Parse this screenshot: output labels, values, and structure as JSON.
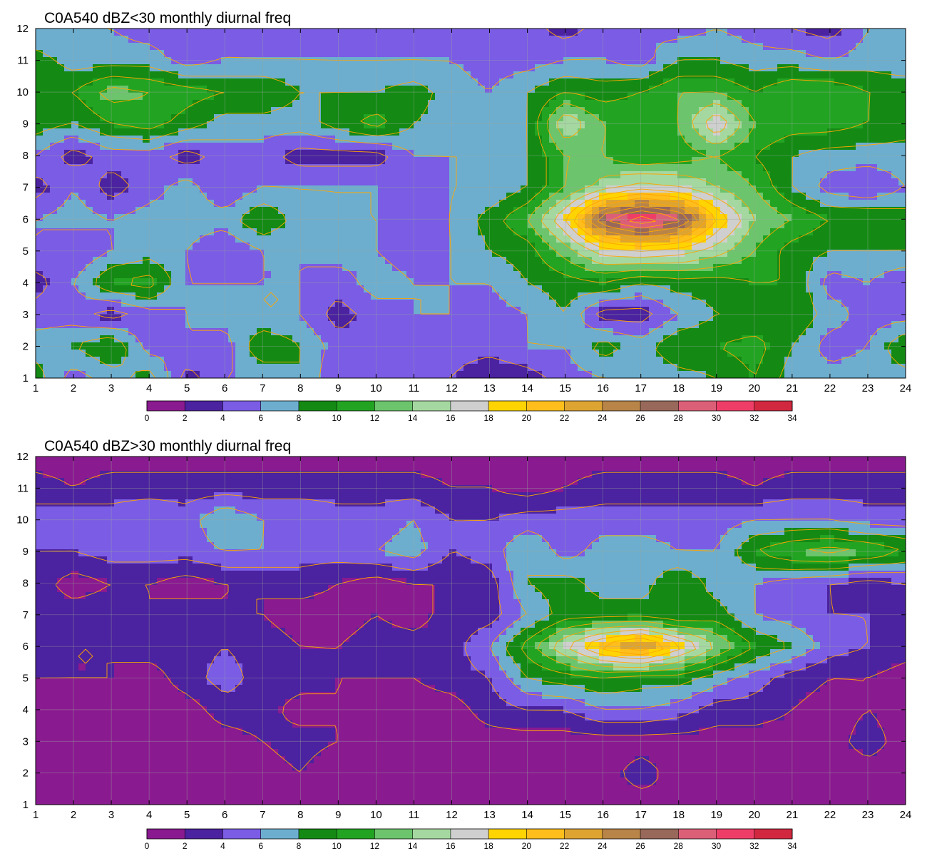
{
  "chart_data": [
    {
      "type": "heatmap",
      "title": "C0A540 dBZ<30 monthly diurnal freq",
      "x_ticks": [
        1,
        2,
        3,
        4,
        5,
        6,
        7,
        8,
        9,
        10,
        11,
        12,
        13,
        14,
        15,
        16,
        17,
        18,
        19,
        20,
        21,
        22,
        23,
        24
      ],
      "y_ticks": [
        1,
        2,
        3,
        4,
        5,
        6,
        7,
        8,
        9,
        10,
        11,
        12
      ],
      "xlim": [
        1,
        24
      ],
      "ylim": [
        1,
        12
      ],
      "grid": true,
      "legend": "colorbar-bottom",
      "colorbar_levels": [
        0,
        2,
        4,
        6,
        8,
        10,
        12,
        14,
        16,
        18,
        20,
        22,
        24,
        26,
        28,
        30,
        32,
        34
      ],
      "z": [
        [
          9,
          5,
          7,
          9,
          3,
          6,
          6,
          8,
          4,
          5,
          4,
          4,
          2,
          3,
          5,
          6,
          6,
          7,
          8,
          10,
          7,
          7,
          7,
          7
        ],
        [
          7,
          8,
          10,
          5,
          6,
          5,
          10,
          8,
          5,
          6,
          6,
          5,
          5,
          6,
          6,
          9,
          7,
          10,
          10,
          11,
          8,
          5,
          6,
          10
        ],
        [
          5,
          5,
          3,
          5,
          6,
          7,
          6,
          6,
          3,
          5,
          6,
          6,
          5,
          6,
          8,
          3,
          3,
          6,
          8,
          8,
          10,
          7,
          5,
          5
        ],
        [
          3,
          6,
          10,
          11,
          6,
          6,
          6,
          6,
          5,
          7,
          6,
          6,
          6,
          8,
          9,
          10,
          8,
          9,
          9,
          10,
          10,
          5,
          6,
          4
        ],
        [
          6,
          4,
          6,
          7,
          6,
          4,
          6,
          6,
          7,
          6,
          5,
          6,
          8,
          9,
          13,
          17,
          18,
          17,
          15,
          12,
          9,
          8,
          8,
          8
        ],
        [
          6,
          7,
          6,
          7,
          7,
          7,
          10,
          7,
          6,
          6,
          6,
          6,
          9,
          12,
          18,
          28,
          32,
          29,
          20,
          14,
          12,
          10,
          10,
          9
        ],
        [
          3,
          6,
          3,
          5,
          7,
          4,
          6,
          6,
          6,
          6,
          4,
          6,
          6,
          8,
          12,
          15,
          17,
          16,
          14,
          12,
          8,
          5,
          4,
          6
        ],
        [
          6,
          3,
          5,
          5,
          3,
          5,
          5,
          3,
          3,
          3,
          6,
          6,
          6,
          8,
          12,
          12,
          10,
          11,
          12,
          10,
          8,
          7,
          7,
          7
        ],
        [
          9,
          8,
          10,
          11,
          9,
          7,
          7,
          7,
          9,
          11,
          8,
          7,
          6,
          8,
          16,
          12,
          12,
          12,
          18,
          12,
          11,
          11,
          10,
          9
        ],
        [
          10,
          10,
          13,
          12,
          11,
          10,
          10,
          8,
          8,
          8,
          9,
          7,
          6,
          8,
          10,
          9,
          10,
          12,
          12,
          10,
          12,
          12,
          10,
          10
        ],
        [
          9,
          7,
          7,
          7,
          5,
          6,
          6,
          6,
          6,
          6,
          6,
          6,
          5,
          5,
          6,
          6,
          5,
          8,
          8,
          7,
          7,
          6,
          7,
          6
        ],
        [
          6,
          6,
          6,
          5,
          5,
          6,
          5,
          5,
          4,
          4,
          4,
          4,
          5,
          5,
          3,
          5,
          6,
          5,
          6,
          5,
          4,
          3,
          6,
          6
        ]
      ]
    },
    {
      "type": "heatmap",
      "title": "C0A540 dBZ>30 monthly diurnal freq",
      "x_ticks": [
        1,
        2,
        3,
        4,
        5,
        6,
        7,
        8,
        9,
        10,
        11,
        12,
        13,
        14,
        15,
        16,
        17,
        18,
        19,
        20,
        21,
        22,
        23,
        24
      ],
      "y_ticks": [
        1,
        2,
        3,
        4,
        5,
        6,
        7,
        8,
        9,
        10,
        11,
        12
      ],
      "xlim": [
        1,
        24
      ],
      "ylim": [
        1,
        12
      ],
      "grid": true,
      "legend": "colorbar-bottom",
      "colorbar_levels": [
        0,
        2,
        4,
        6,
        8,
        10,
        12,
        14,
        16,
        18,
        20,
        22,
        24,
        26,
        28,
        30,
        32,
        34
      ],
      "z": [
        [
          1,
          2,
          2,
          1,
          0,
          1,
          0,
          0,
          1,
          2,
          1,
          1,
          1,
          1,
          0,
          1,
          1,
          2,
          2,
          2,
          2,
          1,
          1,
          1
        ],
        [
          1,
          0,
          1,
          1,
          2,
          1,
          1,
          2,
          0,
          2,
          1,
          1,
          1,
          1,
          2,
          1,
          3,
          1,
          1,
          1,
          1,
          1,
          1,
          1
        ],
        [
          1,
          0,
          1,
          1,
          1,
          1,
          2,
          3,
          2,
          1,
          1,
          1,
          1,
          1,
          1,
          1,
          1,
          1,
          1,
          1,
          1,
          1,
          3,
          1
        ],
        [
          0,
          1,
          2,
          1,
          1,
          3,
          3,
          1,
          2,
          1,
          1,
          1,
          3,
          4,
          4,
          6,
          6,
          5,
          3,
          3,
          2,
          1,
          2,
          1
        ],
        [
          2,
          2,
          2,
          1,
          3,
          5,
          3,
          3,
          2,
          2,
          2,
          3,
          4,
          8,
          9,
          10,
          9,
          9,
          7,
          5,
          3,
          2,
          2,
          1
        ],
        [
          3,
          2,
          2,
          3,
          3,
          4,
          3,
          2,
          2,
          3,
          3,
          3,
          6,
          11,
          16,
          21,
          24,
          19,
          14,
          10,
          8,
          5,
          4,
          3
        ],
        [
          3,
          3,
          3,
          2,
          3,
          2,
          2,
          1,
          1,
          2,
          1,
          3,
          3,
          6,
          9,
          9,
          9,
          8,
          9,
          6,
          5,
          4,
          4,
          3
        ],
        [
          3,
          1,
          2,
          2,
          1,
          2,
          2,
          3,
          2,
          1,
          2,
          2,
          3,
          8,
          9,
          7,
          7,
          10,
          7,
          6,
          5,
          4,
          3,
          4
        ],
        [
          4,
          4,
          5,
          5,
          5,
          6,
          6,
          5,
          5,
          6,
          7,
          4,
          5,
          8,
          5,
          7,
          7,
          6,
          6,
          10,
          12,
          13,
          12,
          10
        ],
        [
          5,
          6,
          5,
          6,
          5,
          8,
          6,
          6,
          5,
          5,
          6,
          4,
          4,
          5,
          5,
          5,
          5,
          5,
          5,
          6,
          6,
          6,
          5,
          5
        ],
        [
          3,
          2,
          3,
          3,
          3,
          3,
          3,
          3,
          3,
          3,
          3,
          2,
          2,
          1,
          2,
          3,
          3,
          3,
          3,
          2,
          3,
          3,
          3,
          3
        ],
        [
          1,
          1,
          1,
          1,
          1,
          1,
          1,
          1,
          1,
          1,
          1,
          1,
          1,
          1,
          1,
          1,
          1,
          1,
          1,
          1,
          1,
          1,
          1,
          1
        ]
      ]
    }
  ],
  "colors": {
    "bands": [
      "#8a1a90",
      "#4b229f",
      "#7b5ce5",
      "#6daecf",
      "#148a14",
      "#22a422",
      "#6cc46c",
      "#a5d8a0",
      "#cfcfcf",
      "#ffd400",
      "#ffbe1c",
      "#dea432",
      "#b88448",
      "#98685a",
      "#dc5f78",
      "#ee3e68",
      "#d12840"
    ],
    "line": "#ffa500",
    "grid": "#98a89a"
  }
}
